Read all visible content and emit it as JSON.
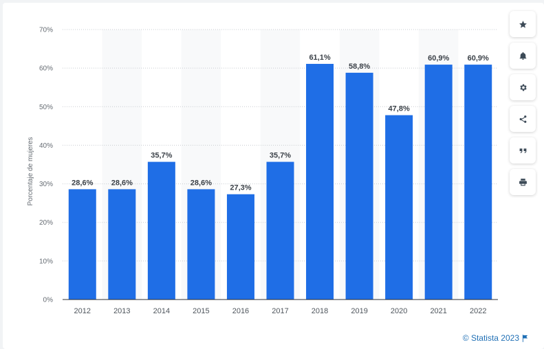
{
  "chart_data": {
    "type": "bar",
    "categories": [
      "2012",
      "2013",
      "2014",
      "2015",
      "2016",
      "2017",
      "2018",
      "2019",
      "2020",
      "2021",
      "2022"
    ],
    "values": [
      28.6,
      28.6,
      35.7,
      28.6,
      27.3,
      35.7,
      61.1,
      58.8,
      47.8,
      60.9,
      60.9
    ],
    "value_labels": [
      "28,6%",
      "28,6%",
      "35,7%",
      "28,6%",
      "27,3%",
      "35,7%",
      "61,1%",
      "58,8%",
      "47,8%",
      "60,9%",
      "60,9%"
    ],
    "ylabel": "Porcentaje de mujeres",
    "xlabel": "",
    "ylim": [
      0,
      70
    ],
    "yticks": [
      0,
      10,
      20,
      30,
      40,
      50,
      60,
      70
    ],
    "ytick_labels": [
      "0%",
      "10%",
      "20%",
      "30%",
      "40%",
      "50%",
      "60%",
      "70%"
    ],
    "grid": true,
    "bar_color": "#1f6ee6"
  },
  "toolbar": {
    "buttons": [
      {
        "name": "star-icon",
        "label": "star"
      },
      {
        "name": "bell-icon",
        "label": "bell"
      },
      {
        "name": "gear-icon",
        "label": "gear"
      },
      {
        "name": "share-icon",
        "label": "share"
      },
      {
        "name": "quote-icon",
        "label": "quote"
      },
      {
        "name": "print-icon",
        "label": "print"
      }
    ]
  },
  "credit": {
    "text": "© Statista 2023"
  }
}
